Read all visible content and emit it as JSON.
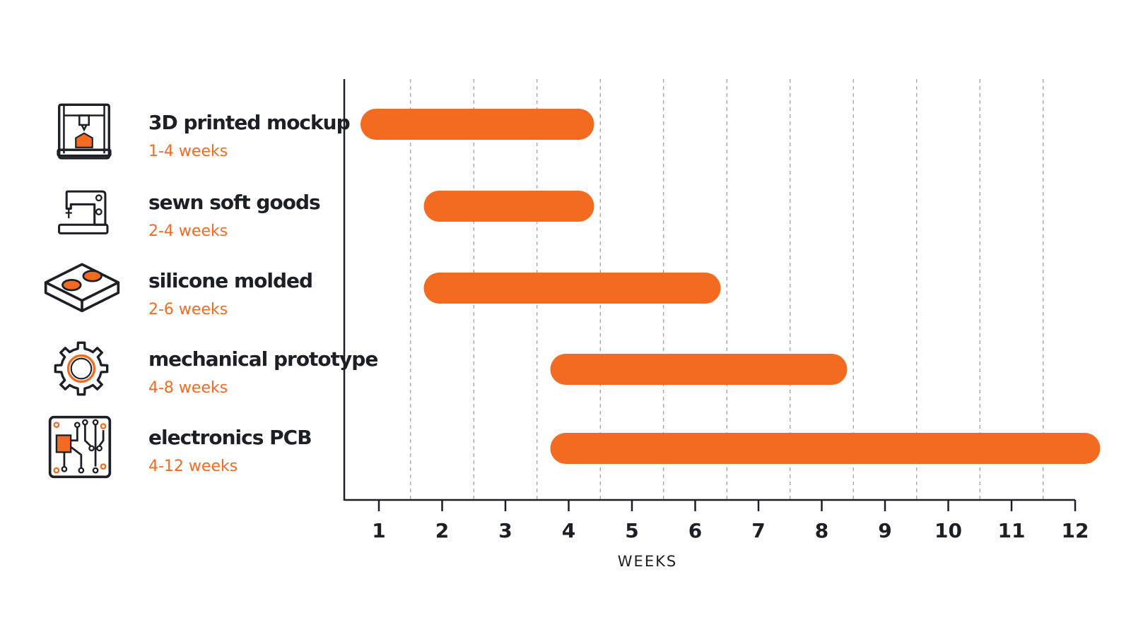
{
  "chart_data": {
    "type": "bar",
    "orientation": "horizontal-range",
    "xlabel": "WEEKS",
    "xlim": [
      0.5,
      12
    ],
    "x_ticks": [
      1,
      2,
      3,
      4,
      5,
      6,
      7,
      8,
      9,
      10,
      11,
      12
    ],
    "x_tick_labels": [
      "1",
      "2",
      "3",
      "4",
      "5",
      "6",
      "7",
      "8",
      "9",
      "10",
      "11",
      "12"
    ],
    "grid": "vertical dashed",
    "bar_color": "#f26b21",
    "categories": [
      "3D printed mockup",
      "sewn soft goods",
      "silicone molded",
      "mechanical prototype",
      "electronics PCB"
    ],
    "subtitles": [
      "1-4 weeks",
      "2-4 weeks",
      "2-6 weeks",
      "4-8 weeks",
      "4-12 weeks"
    ],
    "icons": [
      "3d-printer-icon",
      "sewing-machine-icon",
      "silicone-mold-icon",
      "gear-icon",
      "circuit-board-icon"
    ],
    "ranges": [
      [
        1,
        4
      ],
      [
        2,
        4
      ],
      [
        2,
        6
      ],
      [
        4,
        8
      ],
      [
        4,
        12
      ]
    ]
  }
}
